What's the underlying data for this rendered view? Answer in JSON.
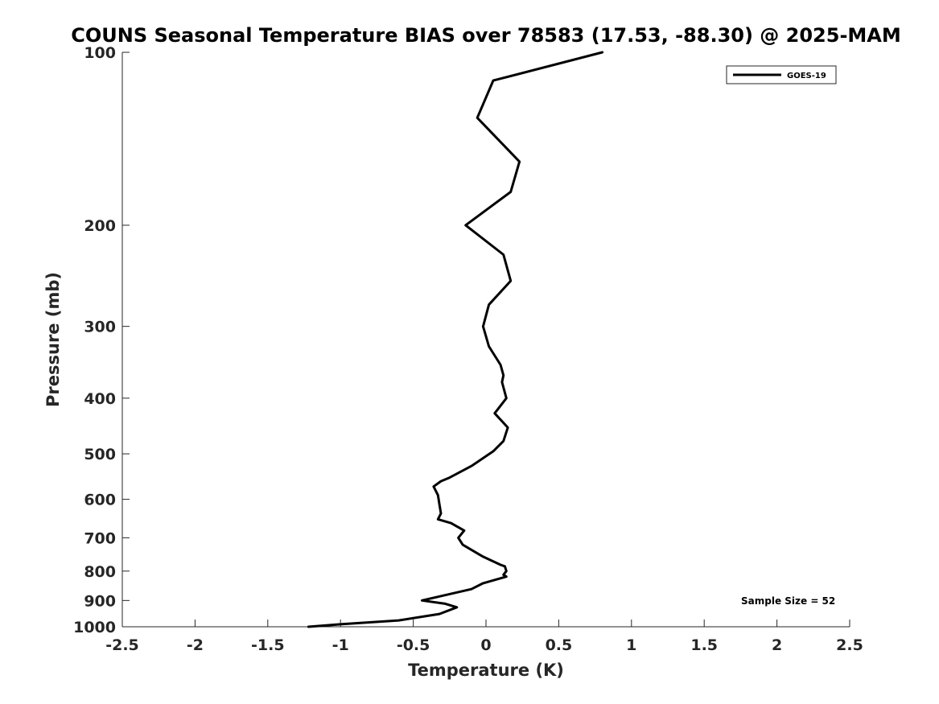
{
  "chart_data": {
    "type": "line",
    "title": "COUNS Seasonal Temperature BIAS over 78583 (17.53, -88.30) @ 2025-MAM",
    "xlabel": "Temperature (K)",
    "ylabel": "Pressure (mb)",
    "xlim": [
      -2.5,
      2.5
    ],
    "ylim": [
      1000,
      100
    ],
    "y_scale": "log",
    "y_reversed": true,
    "x_ticks": [
      "-2.5",
      "-2",
      "-1.5",
      "-1",
      "-0.5",
      "0",
      "0.5",
      "1",
      "1.5",
      "2",
      "2.5"
    ],
    "x_tick_values": [
      -2.5,
      -2,
      -1.5,
      -1,
      -0.5,
      0,
      0.5,
      1,
      1.5,
      2,
      2.5
    ],
    "y_ticks": [
      "100",
      "200",
      "300",
      "400",
      "500",
      "600",
      "700",
      "800",
      "900",
      "1000"
    ],
    "y_tick_values": [
      100,
      200,
      300,
      400,
      500,
      600,
      700,
      800,
      900,
      1000
    ],
    "grid": false,
    "legend_position": "top-right",
    "annotation": "Sample Size = 52",
    "series": [
      {
        "name": "GOES-19",
        "color": "#000000",
        "x": [
          -1.22,
          -1.0,
          -0.6,
          -0.32,
          -0.2,
          -0.28,
          -0.44,
          -0.1,
          -0.02,
          0.14,
          0.12,
          0.14,
          0.13,
          0.1,
          -0.02,
          -0.16,
          -0.19,
          -0.15,
          -0.24,
          -0.33,
          -0.31,
          -0.32,
          -0.33,
          -0.36,
          -0.31,
          -0.25,
          -0.1,
          0.05,
          0.12,
          0.15,
          0.06,
          0.14,
          0.11,
          0.12,
          0.1,
          0.02,
          -0.02,
          0.02,
          0.17,
          0.12,
          -0.14,
          0.17,
          0.23,
          -0.06,
          0.05,
          0.8
        ],
        "y": [
          1000,
          990,
          975,
          950,
          925,
          912,
          900,
          860,
          840,
          818,
          812,
          800,
          785,
          780,
          755,
          720,
          700,
          680,
          660,
          650,
          635,
          612,
          590,
          570,
          558,
          550,
          525,
          495,
          475,
          450,
          425,
          400,
          375,
          365,
          350,
          325,
          300,
          275,
          250,
          225,
          200,
          175,
          155,
          130,
          112,
          100
        ]
      }
    ]
  }
}
